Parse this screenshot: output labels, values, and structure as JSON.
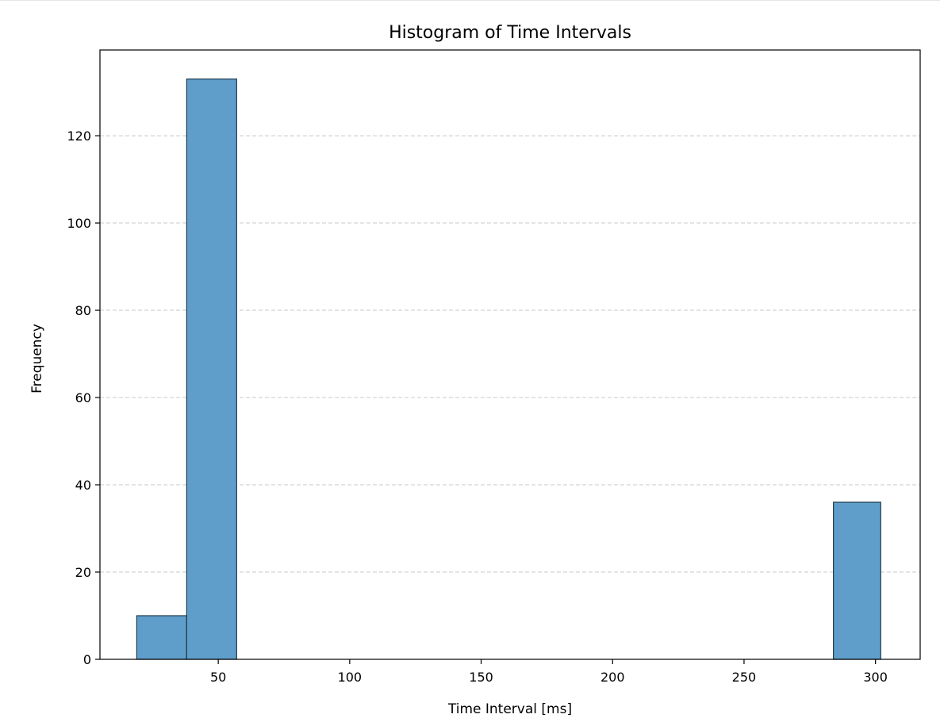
{
  "chart_data": {
    "type": "bar",
    "title": "Histogram of Time Intervals",
    "xlabel": "Time Interval [ms]",
    "ylabel": "Frequency",
    "xlim": [
      5,
      317
    ],
    "ylim": [
      0,
      139.65
    ],
    "xticks": [
      50,
      100,
      150,
      200,
      250,
      300
    ],
    "yticks": [
      0,
      20,
      40,
      60,
      80,
      100,
      120
    ],
    "grid": "y-dashed",
    "bar_color": "#5f9ecb",
    "bar_edge_color": "#1f3a4d",
    "bins": [
      {
        "x0": 19,
        "x1": 38,
        "count": 10
      },
      {
        "x0": 38,
        "x1": 57,
        "count": 133
      },
      {
        "x0": 284,
        "x1": 302,
        "count": 36
      }
    ]
  }
}
